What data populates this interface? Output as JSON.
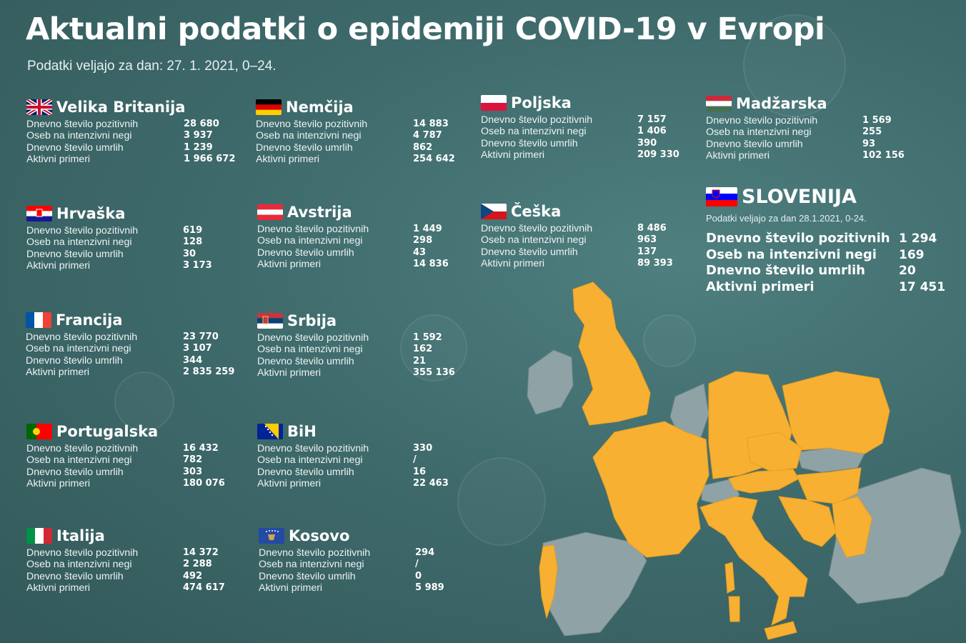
{
  "title": "Aktualni podatki o epidemiji COVID-19 v Evropi",
  "subtitle": "Podatki veljajo za dan: 27. 1. 2021, 0–24.",
  "labels": [
    "Dnevno število pozitivnih",
    "Oseb na intenzivni negi",
    "Dnevno število umrlih",
    "Aktivni primeri"
  ],
  "countries": [
    {
      "name": "Velika Britanija",
      "flag": "uk-flag",
      "values": [
        "28 680",
        "3 937",
        "1 239",
        "1 966 672"
      ]
    },
    {
      "name": "Nemčija",
      "flag": "germany-flag",
      "values": [
        "14 883",
        "4 787",
        "862",
        "254 642"
      ]
    },
    {
      "name": "Poljska",
      "flag": "poland-flag",
      "values": [
        "7 157",
        "1 406",
        "390",
        "209 330"
      ]
    },
    {
      "name": "Madžarska",
      "flag": "hungary-flag",
      "values": [
        "1 569",
        "255",
        "93",
        "102 156"
      ]
    },
    {
      "name": "Hrvaška",
      "flag": "croatia-flag",
      "values": [
        "619",
        "128",
        "30",
        "3 173"
      ]
    },
    {
      "name": "Avstrija",
      "flag": "austria-flag",
      "values": [
        "1 449",
        "298",
        "43",
        "14 836"
      ]
    },
    {
      "name": "Češka",
      "flag": "czechia-flag",
      "values": [
        "8 486",
        "963",
        "137",
        "89 393"
      ]
    },
    {
      "name": "Francija",
      "flag": "france-flag",
      "values": [
        "23 770",
        "3 107",
        "344",
        "2 835 259"
      ]
    },
    {
      "name": "Srbija",
      "flag": "serbia-flag",
      "values": [
        "1 592",
        "162",
        "21",
        "355 136"
      ]
    },
    {
      "name": "Portugalska",
      "flag": "portugal-flag",
      "values": [
        "16 432",
        "782",
        "303",
        "180 076"
      ]
    },
    {
      "name": "BiH",
      "flag": "bih-flag",
      "values": [
        "330",
        "/",
        "16",
        "22 463"
      ]
    },
    {
      "name": "Italija",
      "flag": "italy-flag",
      "values": [
        "14 372",
        "2 288",
        "492",
        "474 617"
      ]
    },
    {
      "name": "Kosovo",
      "flag": "kosovo-flag",
      "values": [
        "294",
        "/",
        "0",
        "5 989"
      ]
    }
  ],
  "slovenia": {
    "name": "SLOVENIJA",
    "note": "Podatki veljajo za dan 28.1.2021, 0-24.",
    "values": [
      "1 294",
      "169",
      "20",
      "17 451"
    ]
  },
  "colors": {
    "background": "#3f6b6c",
    "highlight": "#f7b032",
    "other_land": "#8fa3a6"
  },
  "chart_data": {
    "type": "table",
    "title": "Aktualni podatki o epidemiji COVID-19 v Evropi",
    "columns": [
      "Dnevno število pozitivnih",
      "Oseb na intenzivni negi",
      "Dnevno število umrlih",
      "Aktivni primeri"
    ],
    "rows": [
      {
        "country": "Velika Britanija",
        "values": [
          28680,
          3937,
          1239,
          1966672
        ]
      },
      {
        "country": "Nemčija",
        "values": [
          14883,
          4787,
          862,
          254642
        ]
      },
      {
        "country": "Poljska",
        "values": [
          7157,
          1406,
          390,
          209330
        ]
      },
      {
        "country": "Madžarska",
        "values": [
          1569,
          255,
          93,
          102156
        ]
      },
      {
        "country": "Hrvaška",
        "values": [
          619,
          128,
          30,
          3173
        ]
      },
      {
        "country": "Avstrija",
        "values": [
          1449,
          298,
          43,
          14836
        ]
      },
      {
        "country": "Češka",
        "values": [
          8486,
          963,
          137,
          89393
        ]
      },
      {
        "country": "Francija",
        "values": [
          23770,
          3107,
          344,
          2835259
        ]
      },
      {
        "country": "Srbija",
        "values": [
          1592,
          162,
          21,
          355136
        ]
      },
      {
        "country": "Portugalska",
        "values": [
          16432,
          782,
          303,
          180076
        ]
      },
      {
        "country": "BiH",
        "values": [
          330,
          null,
          16,
          22463
        ]
      },
      {
        "country": "Italija",
        "values": [
          14372,
          2288,
          492,
          474617
        ]
      },
      {
        "country": "Kosovo",
        "values": [
          294,
          null,
          0,
          5989
        ]
      },
      {
        "country": "SLOVENIJA",
        "values": [
          1294,
          169,
          20,
          17451
        ]
      }
    ]
  }
}
